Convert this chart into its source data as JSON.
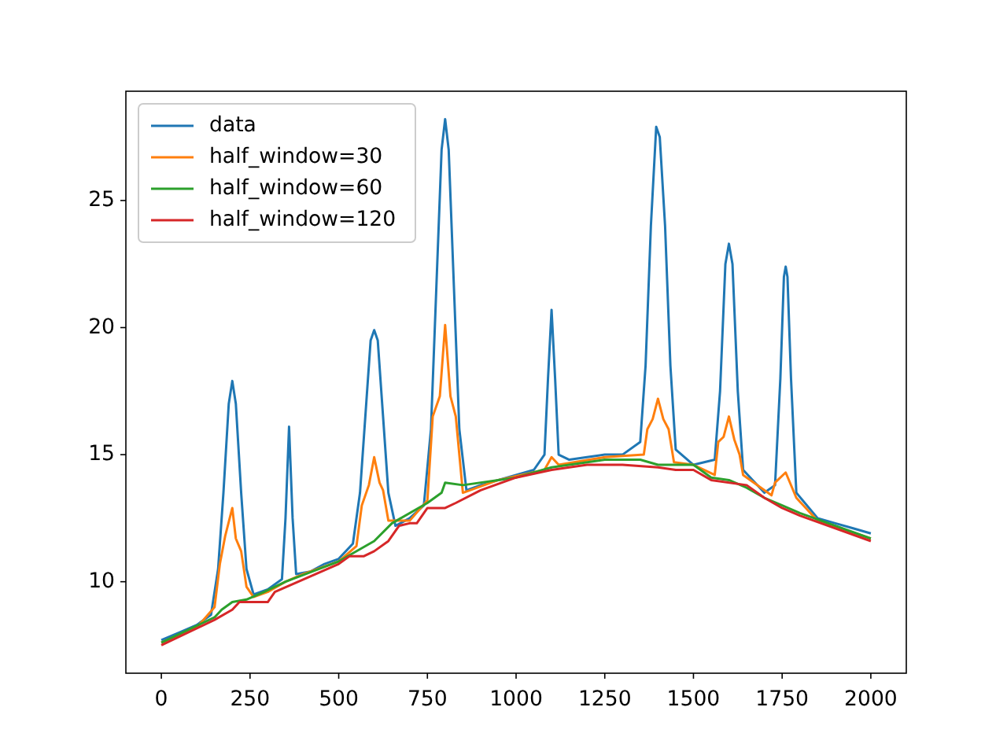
{
  "chart_data": {
    "type": "line",
    "xlim": [
      -100,
      2100
    ],
    "ylim": [
      6.4,
      29.3
    ],
    "xticks": [
      0,
      250,
      500,
      750,
      1000,
      1250,
      1500,
      1750,
      2000
    ],
    "yticks": [
      10,
      15,
      20,
      25
    ],
    "legend": "top left",
    "grid": false,
    "series": [
      {
        "name": "data",
        "color": "#1f77b4",
        "x": [
          0,
          50,
          100,
          140,
          160,
          175,
          190,
          200,
          210,
          225,
          240,
          260,
          300,
          340,
          350,
          360,
          370,
          380,
          420,
          460,
          500,
          540,
          560,
          575,
          590,
          600,
          610,
          625,
          640,
          660,
          700,
          740,
          760,
          775,
          790,
          800,
          810,
          825,
          840,
          860,
          900,
          950,
          1000,
          1050,
          1080,
          1090,
          1100,
          1110,
          1120,
          1150,
          1200,
          1250,
          1300,
          1350,
          1365,
          1380,
          1395,
          1405,
          1420,
          1435,
          1450,
          1500,
          1560,
          1575,
          1590,
          1600,
          1610,
          1625,
          1640,
          1700,
          1730,
          1745,
          1755,
          1760,
          1765,
          1775,
          1790,
          1850,
          1900,
          1950,
          2000
        ],
        "values": [
          7.7,
          8.0,
          8.3,
          8.7,
          10.5,
          13.5,
          17.0,
          17.9,
          17.0,
          13.5,
          10.5,
          9.5,
          9.7,
          10.1,
          12.5,
          16.1,
          12.5,
          10.3,
          10.4,
          10.7,
          10.9,
          11.5,
          13.5,
          16.5,
          19.5,
          19.9,
          19.5,
          16.5,
          13.5,
          12.2,
          12.5,
          13.0,
          16.0,
          21.5,
          27.0,
          28.2,
          27.0,
          21.5,
          16.0,
          13.6,
          13.8,
          14.0,
          14.2,
          14.4,
          15.0,
          18.0,
          20.7,
          18.0,
          15.0,
          14.8,
          14.9,
          15.0,
          15.0,
          15.5,
          18.5,
          24.0,
          27.9,
          27.5,
          24.0,
          18.5,
          15.2,
          14.6,
          14.8,
          17.5,
          22.5,
          23.3,
          22.5,
          17.5,
          14.4,
          13.5,
          13.8,
          18.0,
          22.0,
          22.4,
          22.0,
          18.0,
          13.5,
          12.5,
          12.3,
          12.1,
          11.9
        ]
      },
      {
        "name": "half_window=30",
        "color": "#ff7f0e",
        "x": [
          0,
          100,
          150,
          165,
          180,
          200,
          210,
          225,
          240,
          260,
          300,
          350,
          400,
          500,
          550,
          565,
          585,
          600,
          615,
          625,
          640,
          700,
          750,
          765,
          785,
          800,
          815,
          830,
          850,
          950,
          1080,
          1100,
          1120,
          1250,
          1360,
          1370,
          1385,
          1400,
          1415,
          1430,
          1445,
          1500,
          1560,
          1570,
          1585,
          1600,
          1615,
          1630,
          1640,
          1720,
          1730,
          1760,
          1790,
          1850,
          2000
        ],
        "values": [
          7.6,
          8.2,
          9.0,
          10.7,
          11.8,
          12.9,
          11.7,
          11.2,
          9.8,
          9.4,
          9.6,
          10.0,
          10.3,
          10.8,
          11.4,
          13.0,
          13.8,
          14.9,
          13.9,
          13.6,
          12.4,
          12.4,
          13.2,
          16.5,
          17.3,
          20.1,
          17.3,
          16.5,
          13.5,
          14.0,
          14.4,
          14.9,
          14.6,
          14.9,
          15.0,
          16.0,
          16.4,
          17.2,
          16.4,
          16.0,
          14.7,
          14.6,
          14.2,
          15.5,
          15.7,
          16.5,
          15.6,
          15.0,
          14.2,
          13.4,
          13.9,
          14.3,
          13.3,
          12.4,
          11.7
        ]
      },
      {
        "name": "half_window=60",
        "color": "#2ca02c",
        "x": [
          0,
          150,
          170,
          200,
          240,
          290,
          350,
          500,
          600,
          650,
          750,
          790,
          800,
          850,
          1000,
          1100,
          1250,
          1350,
          1400,
          1450,
          1500,
          1550,
          1600,
          1650,
          1700,
          1750,
          1800,
          2000
        ],
        "values": [
          7.6,
          8.6,
          8.9,
          9.2,
          9.3,
          9.6,
          10.0,
          10.8,
          11.6,
          12.3,
          13.1,
          13.5,
          13.9,
          13.8,
          14.1,
          14.5,
          14.8,
          14.8,
          14.6,
          14.6,
          14.6,
          14.1,
          14.0,
          13.7,
          13.3,
          13.0,
          12.7,
          11.7
        ]
      },
      {
        "name": "half_window=120",
        "color": "#d62728",
        "x": [
          0,
          150,
          200,
          220,
          300,
          320,
          500,
          530,
          570,
          600,
          640,
          670,
          700,
          720,
          750,
          800,
          830,
          900,
          1000,
          1100,
          1200,
          1300,
          1400,
          1450,
          1500,
          1550,
          1650,
          1700,
          1750,
          1800,
          2000
        ],
        "values": [
          7.5,
          8.5,
          8.9,
          9.2,
          9.2,
          9.6,
          10.7,
          11.0,
          11.0,
          11.2,
          11.6,
          12.2,
          12.3,
          12.3,
          12.9,
          12.9,
          13.1,
          13.6,
          14.1,
          14.4,
          14.6,
          14.6,
          14.5,
          14.4,
          14.4,
          14.0,
          13.8,
          13.3,
          12.9,
          12.6,
          11.6
        ]
      }
    ]
  }
}
